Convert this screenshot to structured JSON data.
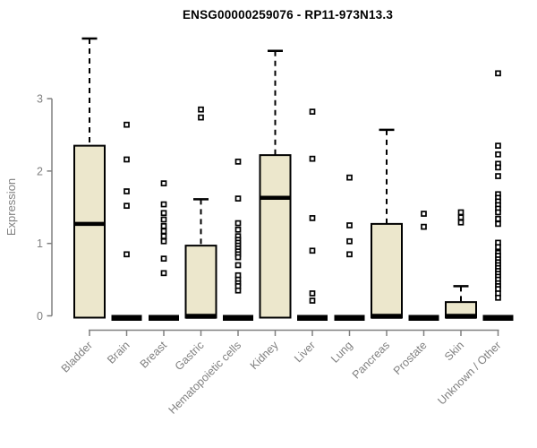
{
  "chart_data": {
    "type": "boxplot",
    "title": "ENSG00000259076 - RP11-973N13.3",
    "ylabel": "Expression",
    "xlabel": "",
    "yticks": [
      0,
      1,
      2,
      3
    ],
    "ylim": [
      0,
      3.9
    ],
    "grid": false,
    "legend": "none",
    "colors": {
      "box_fill": "#ece7cc",
      "box_stroke": "#000000",
      "axis": "#808080",
      "tick_text": "#808080",
      "title_text": "#000000"
    },
    "categories": [
      "Bladder",
      "Brain",
      "Breast",
      "Gastric",
      "Hematopoietic cells",
      "Kidney",
      "Liver",
      "Lung",
      "Pancreas",
      "Prostate",
      "Skin",
      "Unknown / Other"
    ],
    "series": [
      {
        "category": "Bladder",
        "whisker_low": 0,
        "q1": 0,
        "median": 1.27,
        "q3": 2.35,
        "whisker_high": 3.83,
        "outliers": []
      },
      {
        "category": "Brain",
        "whisker_low": 0,
        "q1": 0,
        "median": 0,
        "q3": 0,
        "whisker_high": 0,
        "outliers": [
          2.64,
          2.16,
          1.72,
          1.52,
          0.85
        ]
      },
      {
        "category": "Breast",
        "whisker_low": 0,
        "q1": 0,
        "median": 0,
        "q3": 0,
        "whisker_high": 0,
        "outliers": [
          1.83,
          1.54,
          1.42,
          1.33,
          1.24,
          1.17,
          1.1,
          1.03,
          0.79,
          0.59
        ]
      },
      {
        "category": "Gastric",
        "whisker_low": 0,
        "q1": 0,
        "median": 0,
        "q3": 0.97,
        "whisker_high": 1.61,
        "outliers": [
          2.85,
          2.74
        ]
      },
      {
        "category": "Hematopoietic cells",
        "whisker_low": 0,
        "q1": 0,
        "median": 0,
        "q3": 0,
        "whisker_high": 0,
        "outliers": [
          2.13,
          1.62,
          1.28,
          1.19,
          1.1,
          1.05,
          1.01,
          0.97,
          0.93,
          0.89,
          0.85,
          0.81,
          0.7,
          0.56,
          0.5,
          0.45,
          0.41,
          0.35
        ]
      },
      {
        "category": "Kidney",
        "whisker_low": 0,
        "q1": 0,
        "median": 1.63,
        "q3": 2.22,
        "whisker_high": 3.66,
        "outliers": []
      },
      {
        "category": "Liver",
        "whisker_low": 0,
        "q1": 0,
        "median": 0,
        "q3": 0,
        "whisker_high": 0,
        "outliers": [
          2.82,
          2.17,
          1.35,
          0.9,
          0.31,
          0.21
        ]
      },
      {
        "category": "Lung",
        "whisker_low": 0,
        "q1": 0,
        "median": 0,
        "q3": 0,
        "whisker_high": 0,
        "outliers": [
          1.91,
          1.25,
          1.03,
          0.85
        ]
      },
      {
        "category": "Pancreas",
        "whisker_low": 0,
        "q1": 0,
        "median": 0,
        "q3": 1.27,
        "whisker_high": 2.57,
        "outliers": []
      },
      {
        "category": "Prostate",
        "whisker_low": 0,
        "q1": 0,
        "median": 0,
        "q3": 0,
        "whisker_high": 0,
        "outliers": [
          1.41,
          1.23
        ]
      },
      {
        "category": "Skin",
        "whisker_low": 0,
        "q1": 0,
        "median": 0,
        "q3": 0.19,
        "whisker_high": 0.41,
        "outliers": [
          1.43,
          1.36,
          1.29
        ]
      },
      {
        "category": "Unknown / Other",
        "whisker_low": 0,
        "q1": 0,
        "median": 0,
        "q3": 0,
        "whisker_high": 0,
        "outliers": [
          3.35,
          2.35,
          2.23,
          2.1,
          2.05,
          1.93,
          1.68,
          1.63,
          1.58,
          1.53,
          1.48,
          1.43,
          1.34,
          1.27,
          1.01,
          0.95,
          0.87,
          0.83,
          0.78,
          0.74,
          0.7,
          0.66,
          0.62,
          0.58,
          0.54,
          0.5,
          0.45,
          0.41,
          0.37,
          0.31,
          0.25
        ]
      }
    ]
  }
}
